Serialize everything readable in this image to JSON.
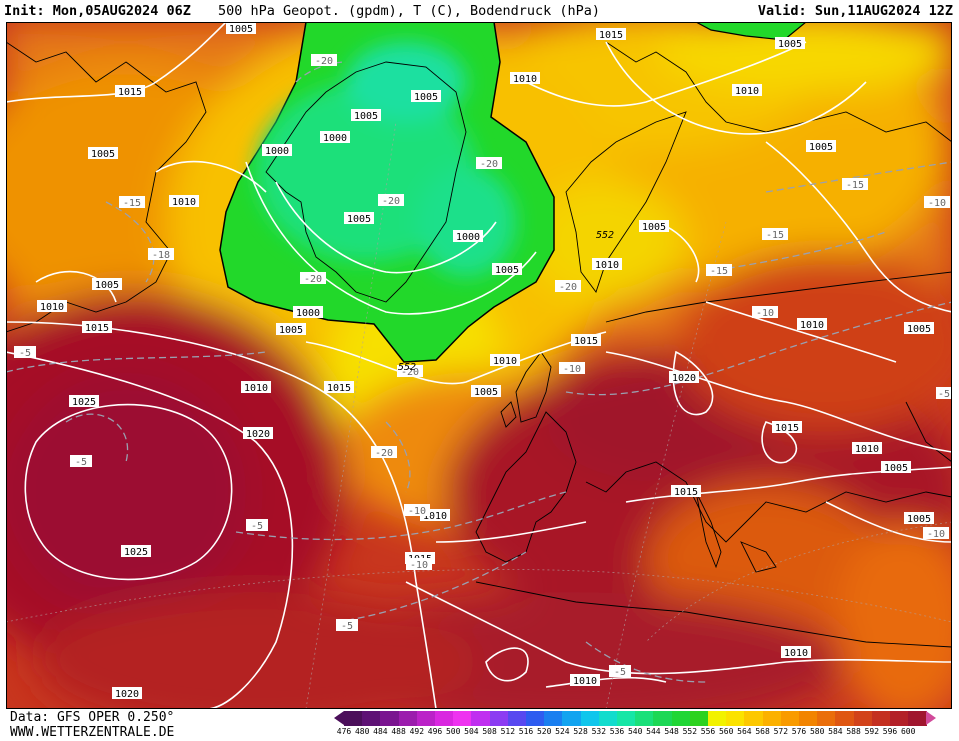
{
  "header": {
    "init": "Init: Mon,05AUG2024 06Z",
    "title": "500 hPa Geopot. (gpdm), T (C), Bodendruck (hPa)",
    "valid": "Valid: Sun,11AUG2024 12Z"
  },
  "footer": {
    "data_source": "Data: GFS OPER 0.250°",
    "site": "WWW.WETTERZENTRALE.DE"
  },
  "legend": {
    "values": [
      "476",
      "480",
      "484",
      "488",
      "492",
      "496",
      "500",
      "504",
      "508",
      "512",
      "516",
      "520",
      "524",
      "528",
      "532",
      "536",
      "540",
      "544",
      "548",
      "552",
      "556",
      "560",
      "564",
      "568",
      "572",
      "576",
      "580",
      "584",
      "588",
      "592",
      "596",
      "600"
    ],
    "colors": [
      "#4b0f5a",
      "#5e1275",
      "#7a1590",
      "#9b1cad",
      "#bb22c8",
      "#d928e0",
      "#ee33f0",
      "#c02ff0",
      "#8c3cf2",
      "#5848f0",
      "#2e5cf0",
      "#1a7ff0",
      "#12a4f0",
      "#10c6ec",
      "#12dccd",
      "#16e6a6",
      "#1ae07a",
      "#1cd855",
      "#20d635",
      "#2cd21e",
      "#f2f200",
      "#fbe200",
      "#fdc800",
      "#fcb100",
      "#f99b00",
      "#f28400",
      "#ea6e0a",
      "#df5712",
      "#d2431a",
      "#c43020",
      "#b32128",
      "#a0162e"
    ]
  },
  "map": {
    "isobar_labels": [
      "1005",
      "1015",
      "1005",
      "1010",
      "1015",
      "1010",
      "1005",
      "1010",
      "1015",
      "1000",
      "1005",
      "1000",
      "1005",
      "1005",
      "1005",
      "1000",
      "1000",
      "1005",
      "1010",
      "1005",
      "1005",
      "1010",
      "1010",
      "1005",
      "1010",
      "1015",
      "1025",
      "1020",
      "1015",
      "1010",
      "1010",
      "1005",
      "1020",
      "1015",
      "1010",
      "1015",
      "1005",
      "1005",
      "1015",
      "1025",
      "1010",
      "1020",
      "1010",
      "1005"
    ],
    "temp_labels": [
      "-15",
      "-18",
      "-20",
      "-20",
      "-20",
      "-20",
      "-20",
      "-20",
      "-15",
      "-15",
      "-10",
      "-10",
      "-15",
      "-10",
      "-5",
      "-5",
      "-10",
      "-5",
      "-5",
      "-10",
      "-20",
      "-5",
      "-10",
      "-5"
    ],
    "geopot_labels": [
      "552",
      "552"
    ]
  }
}
